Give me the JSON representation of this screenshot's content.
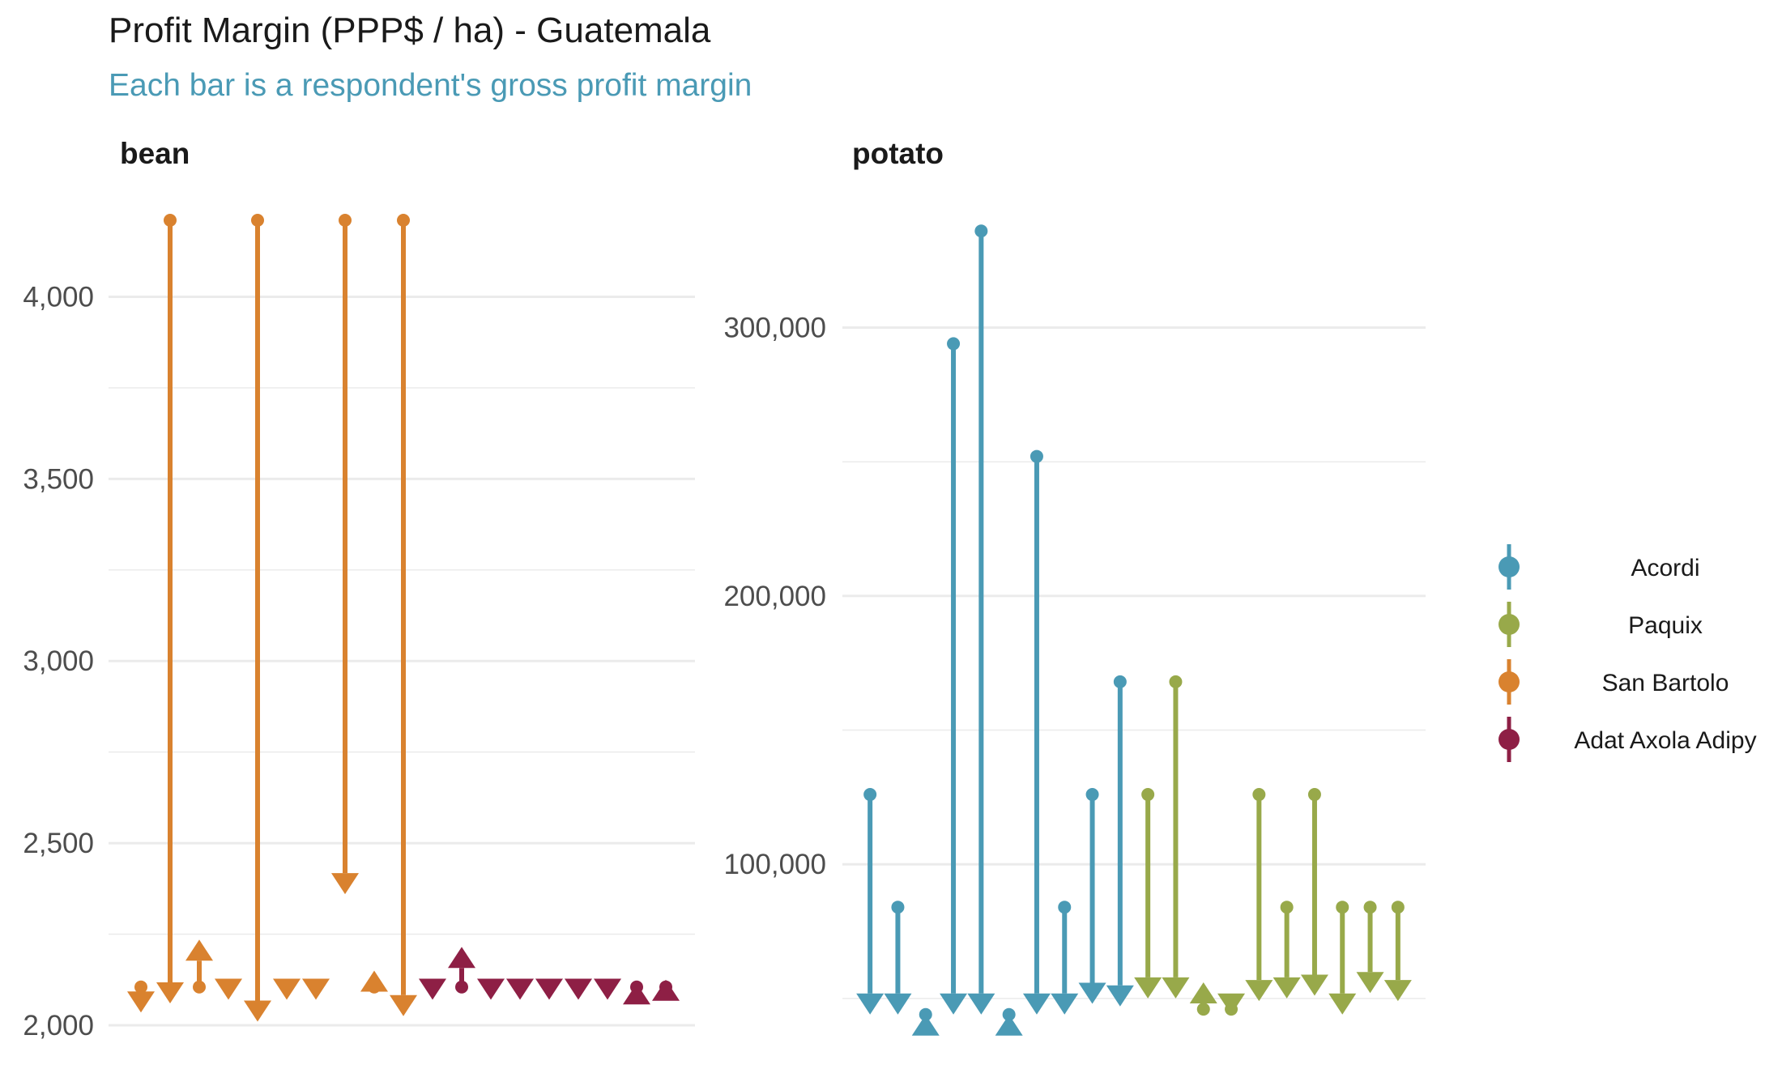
{
  "title": "Profit Margin (PPP$ / ha) - Guatemala",
  "subtitle": "Each bar is a respondent's gross profit margin",
  "colors": {
    "Acordi": "#4a9ab5",
    "Paquix": "#98a94a",
    "San Bartolo": "#d9822f",
    "Adat Axola Adipy": "#8e1f45",
    "subtitle": "#4a9ab5",
    "grid": "#ebebeb"
  },
  "legend": {
    "position": "right",
    "items": [
      "Acordi",
      "Paquix",
      "San Bartolo",
      "Adat Axola Adipy"
    ]
  },
  "chart_data": [
    {
      "type": "arrow",
      "facet": "bean",
      "ylim": [
        2000,
        4210
      ],
      "yticks": [
        2000,
        2500,
        3000,
        3500,
        4000
      ],
      "ytick_labels": [
        "2,000",
        "2,500",
        "3,000",
        "3,500",
        "4,000"
      ],
      "grid": true,
      "series": [
        {
          "name": "San Bartolo",
          "bars": [
            {
              "from": 2105,
              "to": 2035
            },
            {
              "from": 4210,
              "to": 2060
            },
            {
              "from": 2105,
              "to": 2235
            },
            {
              "from": 2105,
              "to": 2070
            },
            {
              "from": 4210,
              "to": 2010
            },
            {
              "from": 2105,
              "to": 2070
            },
            {
              "from": 2105,
              "to": 2070
            },
            {
              "from": 4210,
              "to": 2360
            },
            {
              "from": 2105,
              "to": 2150
            },
            {
              "from": 4210,
              "to": 2025
            }
          ]
        },
        {
          "name": "Adat Axola Adipy",
          "bars": [
            {
              "from": 2105,
              "to": 2070
            },
            {
              "from": 2105,
              "to": 2215
            },
            {
              "from": 2105,
              "to": 2070
            },
            {
              "from": 2105,
              "to": 2070
            },
            {
              "from": 2105,
              "to": 2070
            },
            {
              "from": 2105,
              "to": 2070
            },
            {
              "from": 2105,
              "to": 2070
            },
            {
              "from": 2105,
              "to": 2115
            },
            {
              "from": 2105,
              "to": 2125
            }
          ]
        }
      ]
    },
    {
      "type": "arrow",
      "facet": "potato",
      "ylim": [
        40000,
        340000
      ],
      "yticks": [
        100000,
        200000,
        300000
      ],
      "ytick_labels": [
        "100,000",
        "200,000",
        "300,000"
      ],
      "grid": true,
      "series": [
        {
          "name": "Acordi",
          "bars": [
            {
              "from": 126000,
              "to": 44000
            },
            {
              "from": 84000,
              "to": 44000
            },
            {
              "from": 44000,
              "to": 44000
            },
            {
              "from": 294000,
              "to": 44000
            },
            {
              "from": 336000,
              "to": 44000
            },
            {
              "from": 44000,
              "to": 44000
            },
            {
              "from": 252000,
              "to": 44000
            },
            {
              "from": 84000,
              "to": 44000
            },
            {
              "from": 126000,
              "to": 48000
            },
            {
              "from": 168000,
              "to": 47000
            }
          ]
        },
        {
          "name": "Paquix",
          "bars": [
            {
              "from": 126000,
              "to": 50000
            },
            {
              "from": 168000,
              "to": 50000
            },
            {
              "from": 46000,
              "to": 56000
            },
            {
              "from": 46000,
              "to": 44000
            },
            {
              "from": 126000,
              "to": 49000
            },
            {
              "from": 84000,
              "to": 50000
            },
            {
              "from": 126000,
              "to": 51000
            },
            {
              "from": 84000,
              "to": 44000
            },
            {
              "from": 84000,
              "to": 52000
            },
            {
              "from": 84000,
              "to": 49000
            }
          ]
        }
      ]
    }
  ]
}
